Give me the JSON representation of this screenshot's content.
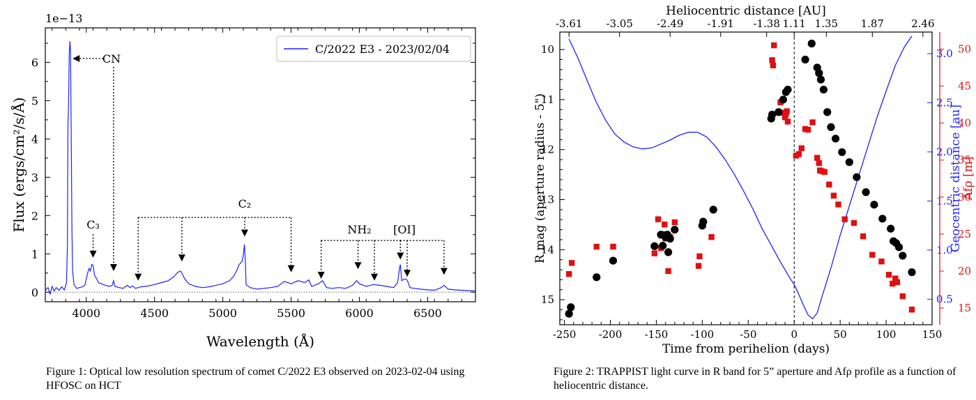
{
  "figure1": {
    "caption": "Figure 1: Optical low resolution spectrum of comet C/2022 E3 observed on 2023-02-04 using HFOSC on HCT",
    "chart_data": {
      "type": "line",
      "xlabel": "Wavelength (Å)",
      "ylabel": "Flux (ergs/cm²/s/Å)",
      "y_scale_label": "1e−13",
      "xlim": [
        3700,
        6850
      ],
      "ylim": [
        -0.25,
        6.9
      ],
      "xticks": [
        4000,
        4500,
        5000,
        5500,
        6000,
        6500
      ],
      "yticks": [
        0,
        1,
        2,
        3,
        4,
        5,
        6
      ],
      "legend": "C/2022 E3 - 2023/02/04",
      "legend_position": "top-right",
      "series_color": "#1f1fff",
      "baseline": 0,
      "spectrum": [
        [
          3700,
          0.05
        ],
        [
          3720,
          0.12
        ],
        [
          3735,
          -0.05
        ],
        [
          3750,
          0.15
        ],
        [
          3765,
          0.03
        ],
        [
          3780,
          0.12
        ],
        [
          3800,
          0.05
        ],
        [
          3820,
          0.14
        ],
        [
          3840,
          0.06
        ],
        [
          3855,
          0.25
        ],
        [
          3862,
          1.2
        ],
        [
          3866,
          4.4
        ],
        [
          3870,
          4.8
        ],
        [
          3875,
          6.2
        ],
        [
          3880,
          6.55
        ],
        [
          3885,
          6.3
        ],
        [
          3890,
          4.0
        ],
        [
          3895,
          1.6
        ],
        [
          3900,
          0.55
        ],
        [
          3910,
          0.2
        ],
        [
          3930,
          0.1
        ],
        [
          3950,
          0.12
        ],
        [
          3970,
          0.14
        ],
        [
          3990,
          0.18
        ],
        [
          4000,
          0.35
        ],
        [
          4010,
          0.5
        ],
        [
          4020,
          0.62
        ],
        [
          4030,
          0.55
        ],
        [
          4040,
          0.72
        ],
        [
          4050,
          0.7
        ],
        [
          4060,
          0.45
        ],
        [
          4075,
          0.35
        ],
        [
          4090,
          0.25
        ],
        [
          4110,
          0.22
        ],
        [
          4140,
          0.18
        ],
        [
          4170,
          0.15
        ],
        [
          4190,
          0.18
        ],
        [
          4200,
          0.3
        ],
        [
          4210,
          0.15
        ],
        [
          4240,
          0.12
        ],
        [
          4270,
          0.1
        ],
        [
          4300,
          0.18
        ],
        [
          4320,
          0.12
        ],
        [
          4340,
          0.16
        ],
        [
          4360,
          0.1
        ],
        [
          4400,
          0.14
        ],
        [
          4450,
          0.16
        ],
        [
          4500,
          0.2
        ],
        [
          4550,
          0.25
        ],
        [
          4600,
          0.3
        ],
        [
          4640,
          0.4
        ],
        [
          4670,
          0.52
        ],
        [
          4690,
          0.55
        ],
        [
          4700,
          0.5
        ],
        [
          4720,
          0.35
        ],
        [
          4750,
          0.22
        ],
        [
          4800,
          0.15
        ],
        [
          4850,
          0.12
        ],
        [
          4900,
          0.14
        ],
        [
          4950,
          0.18
        ],
        [
          5000,
          0.22
        ],
        [
          5050,
          0.3
        ],
        [
          5080,
          0.42
        ],
        [
          5100,
          0.55
        ],
        [
          5120,
          0.72
        ],
        [
          5140,
          0.8
        ],
        [
          5150,
          0.95
        ],
        [
          5158,
          1.25
        ],
        [
          5165,
          0.8
        ],
        [
          5170,
          0.2
        ],
        [
          5200,
          0.12
        ],
        [
          5250,
          0.08
        ],
        [
          5300,
          0.1
        ],
        [
          5350,
          0.12
        ],
        [
          5400,
          0.15
        ],
        [
          5450,
          0.28
        ],
        [
          5500,
          0.22
        ],
        [
          5550,
          0.3
        ],
        [
          5600,
          0.25
        ],
        [
          5630,
          0.32
        ],
        [
          5650,
          0.15
        ],
        [
          5700,
          0.22
        ],
        [
          5730,
          0.3
        ],
        [
          5760,
          0.12
        ],
        [
          5800,
          0.1
        ],
        [
          5850,
          0.12
        ],
        [
          5900,
          0.1
        ],
        [
          5950,
          0.18
        ],
        [
          5980,
          0.3
        ],
        [
          6000,
          0.22
        ],
        [
          6050,
          0.15
        ],
        [
          6100,
          0.2
        ],
        [
          6150,
          0.18
        ],
        [
          6200,
          0.15
        ],
        [
          6250,
          0.12
        ],
        [
          6280,
          0.25
        ],
        [
          6295,
          0.65
        ],
        [
          6300,
          0.72
        ],
        [
          6310,
          0.3
        ],
        [
          6330,
          0.35
        ],
        [
          6350,
          0.32
        ],
        [
          6370,
          0.12
        ],
        [
          6400,
          0.1
        ],
        [
          6450,
          0.08
        ],
        [
          6500,
          0.06
        ],
        [
          6550,
          0.05
        ],
        [
          6600,
          0.12
        ],
        [
          6620,
          0.18
        ],
        [
          6650,
          0.08
        ],
        [
          6700,
          0.06
        ],
        [
          6750,
          0.05
        ],
        [
          6800,
          0.04
        ],
        [
          6850,
          0.03
        ]
      ],
      "annotations": [
        {
          "label": "CN",
          "arrow_tips": [
            [
              3890,
              6.1
            ],
            [
              4200,
              0.55
            ]
          ]
        },
        {
          "label": "C₃",
          "arrow_tips": [
            [
              4050,
              0.9
            ]
          ]
        },
        {
          "label": "C₂",
          "bracket_y": 1.95,
          "arrow_tips": [
            [
              4380,
              0.3
            ],
            [
              4700,
              0.8
            ],
            [
              5160,
              1.45
            ],
            [
              5500,
              0.52
            ]
          ]
        },
        {
          "label": "NH₂",
          "bracket_y": 1.35,
          "arrow_tips": [
            [
              5720,
              0.35
            ],
            [
              5990,
              0.6
            ],
            [
              6110,
              0.3
            ]
          ]
        },
        {
          "label": "[OI]",
          "bracket_y": 1.35,
          "arrow_tips": [
            [
              6300,
              0.85
            ],
            [
              6350,
              0.4
            ],
            [
              6620,
              0.45
            ]
          ]
        }
      ]
    }
  },
  "figure2": {
    "caption": "Figure 2: TRAPPIST light curve in R band for 5” aperture and Afρ profile as a function of heliocentric distance.",
    "chart_data": {
      "type": "scatter",
      "xlabel": "Time from perihelion (days)",
      "ylabel_left": "R mag (aperture radius - 5\")",
      "ylabel_right_blue": "Geocentric distance [au]",
      "ylabel_right_red": "Afρ [m]",
      "xlabel_top": "Heliocentric distance [AU]",
      "xlim": [
        -255,
        150
      ],
      "ylim_left_inverted": [
        15.5,
        9.65
      ],
      "ylim_blue": [
        0.24,
        3.22
      ],
      "ylim_red": [
        12.75,
        52.3
      ],
      "xticks": [
        -250,
        -200,
        -150,
        -100,
        -50,
        0,
        50,
        100,
        150
      ],
      "yticks_left": [
        10,
        11,
        12,
        13,
        14,
        15
      ],
      "yticks_blue": [
        0.5,
        1.0,
        1.5,
        2.0,
        2.5,
        3.0
      ],
      "yticks_red": [
        15,
        20,
        25,
        30,
        35,
        40,
        45,
        50
      ],
      "top_ticks": [
        {
          "day": -245,
          "label": "-3.61"
        },
        {
          "day": -190,
          "label": "-3.05"
        },
        {
          "day": -135,
          "label": "-2.49"
        },
        {
          "day": -80,
          "label": "-1.91"
        },
        {
          "day": -30,
          "label": "-1.38"
        },
        {
          "day": 0,
          "label": "1.11"
        },
        {
          "day": 35,
          "label": "1.35"
        },
        {
          "day": 85,
          "label": "1.87"
        },
        {
          "day": 140,
          "label": "2.46"
        }
      ],
      "perihelion_line_x": 0,
      "colors": {
        "rmag": "#000000",
        "afrho": "#e01010",
        "geocentric": "#2020ff",
        "right_red_axis": "#e01010",
        "right_blue_axis": "#2020ff"
      },
      "rmag": [
        [
          -245,
          15.28
        ],
        [
          -243,
          15.15
        ],
        [
          -215,
          14.55
        ],
        [
          -197,
          14.22
        ],
        [
          -152,
          13.93
        ],
        [
          -145,
          13.7
        ],
        [
          -143,
          13.92
        ],
        [
          -140,
          13.75
        ],
        [
          -138,
          13.7
        ],
        [
          -137,
          14.05
        ],
        [
          -135,
          13.78
        ],
        [
          -130,
          13.6
        ],
        [
          -100,
          13.52
        ],
        [
          -99,
          13.44
        ],
        [
          -88,
          13.2
        ],
        [
          -25,
          11.38
        ],
        [
          -24,
          11.3
        ],
        [
          -17,
          11.25
        ],
        [
          -12,
          11.0
        ],
        [
          -9,
          10.85
        ],
        [
          -7,
          10.8
        ],
        [
          12,
          10.2
        ],
        [
          19,
          9.88
        ],
        [
          25,
          10.36
        ],
        [
          27,
          10.47
        ],
        [
          29,
          10.6
        ],
        [
          32,
          10.8
        ],
        [
          36,
          11.25
        ],
        [
          40,
          11.55
        ],
        [
          45,
          11.78
        ],
        [
          52,
          12.05
        ],
        [
          60,
          12.25
        ],
        [
          68,
          12.55
        ],
        [
          78,
          12.85
        ],
        [
          87,
          13.1
        ],
        [
          96,
          13.38
        ],
        [
          105,
          13.58
        ],
        [
          108,
          13.83
        ],
        [
          111,
          13.87
        ],
        [
          114,
          13.95
        ],
        [
          118,
          14.12
        ],
        [
          128,
          14.45
        ]
      ],
      "afrho": [
        [
          -245,
          19.6
        ],
        [
          -242,
          21.1
        ],
        [
          -215,
          23.3
        ],
        [
          -197,
          23.3
        ],
        [
          -152,
          22.4
        ],
        [
          -148,
          27.0
        ],
        [
          -145,
          23.1
        ],
        [
          -143,
          25.0
        ],
        [
          -141,
          26.3
        ],
        [
          -140,
          24.4
        ],
        [
          -137,
          20.0
        ],
        [
          -135,
          24.6
        ],
        [
          -130,
          26.6
        ],
        [
          -104,
          20.7
        ],
        [
          -103,
          22.0
        ],
        [
          -90,
          24.6
        ],
        [
          -24,
          48.5
        ],
        [
          -23,
          47.8
        ],
        [
          -22,
          50.5
        ],
        [
          -15,
          42.8
        ],
        [
          -12,
          41.4
        ],
        [
          -10,
          40.8
        ],
        [
          -9,
          41.2
        ],
        [
          -8,
          41.6
        ],
        [
          -7,
          40.2
        ],
        [
          2,
          35.6
        ],
        [
          5,
          35.8
        ],
        [
          8,
          36.6
        ],
        [
          12,
          39.2
        ],
        [
          15,
          39.1
        ],
        [
          20,
          40.1
        ],
        [
          25,
          35.3
        ],
        [
          27,
          34.6
        ],
        [
          28,
          33.6
        ],
        [
          30,
          33.5
        ],
        [
          33,
          33.4
        ],
        [
          38,
          31.7
        ],
        [
          43,
          30.2
        ],
        [
          48,
          29.0
        ],
        [
          55,
          27.0
        ],
        [
          65,
          26.5
        ],
        [
          75,
          24.7
        ],
        [
          85,
          22.2
        ],
        [
          95,
          21.3
        ],
        [
          103,
          19.5
        ],
        [
          107,
          18.3
        ],
        [
          110,
          19.0
        ],
        [
          112,
          18.5
        ],
        [
          118,
          16.6
        ],
        [
          128,
          14.8
        ]
      ],
      "geocentric": [
        [
          -245,
          3.15
        ],
        [
          -235,
          2.95
        ],
        [
          -225,
          2.72
        ],
        [
          -215,
          2.5
        ],
        [
          -205,
          2.32
        ],
        [
          -195,
          2.18
        ],
        [
          -185,
          2.1
        ],
        [
          -175,
          2.05
        ],
        [
          -165,
          2.03
        ],
        [
          -155,
          2.04
        ],
        [
          -145,
          2.08
        ],
        [
          -135,
          2.12
        ],
        [
          -125,
          2.17
        ],
        [
          -115,
          2.2
        ],
        [
          -105,
          2.2
        ],
        [
          -95,
          2.15
        ],
        [
          -85,
          2.05
        ],
        [
          -75,
          1.92
        ],
        [
          -65,
          1.77
        ],
        [
          -55,
          1.6
        ],
        [
          -45,
          1.42
        ],
        [
          -35,
          1.22
        ],
        [
          -25,
          1.05
        ],
        [
          -15,
          0.88
        ],
        [
          -5,
          0.72
        ],
        [
          0,
          0.65
        ],
        [
          5,
          0.55
        ],
        [
          10,
          0.44
        ],
        [
          15,
          0.34
        ],
        [
          20,
          0.3
        ],
        [
          25,
          0.36
        ],
        [
          30,
          0.52
        ],
        [
          40,
          0.82
        ],
        [
          50,
          1.15
        ],
        [
          60,
          1.45
        ],
        [
          70,
          1.75
        ],
        [
          80,
          2.05
        ],
        [
          90,
          2.35
        ],
        [
          100,
          2.62
        ],
        [
          110,
          2.88
        ],
        [
          120,
          3.07
        ],
        [
          128,
          3.18
        ]
      ]
    }
  }
}
